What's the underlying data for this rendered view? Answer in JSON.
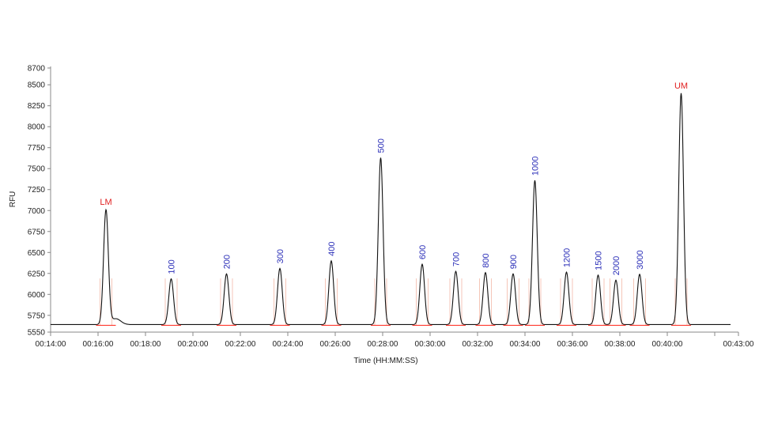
{
  "chart_data": {
    "type": "line",
    "xlabel": "Time (HH:MM:SS)",
    "ylabel": "RFU",
    "xlim": [
      "00:14:00",
      "00:43:00"
    ],
    "ylim": [
      5550,
      8700
    ],
    "x_ticks": [
      "00:14:00",
      "00:16:00",
      "00:18:00",
      "00:20:00",
      "00:22:00",
      "00:24:00",
      "00:26:00",
      "00:28:00",
      "00:30:00",
      "00:32:00",
      "00:34:00",
      "00:36:00",
      "00:38:00",
      "00:40:00",
      "00:43:00"
    ],
    "y_ticks": [
      "5550",
      "5750",
      "6000",
      "6250",
      "6500",
      "6750",
      "7000",
      "7250",
      "7500",
      "7750",
      "8000",
      "8250",
      "8500",
      "8700"
    ],
    "baseline": 5640,
    "grid": false,
    "peaks": [
      {
        "label": "LM",
        "time": "00:16:20",
        "rfu": 7010,
        "label_color": "#e02020"
      },
      {
        "label": "100",
        "time": "00:19:05",
        "rfu": 6185,
        "label_color": "#2b2fb8"
      },
      {
        "label": "200",
        "time": "00:21:25",
        "rfu": 6245,
        "label_color": "#2b2fb8"
      },
      {
        "label": "300",
        "time": "00:23:40",
        "rfu": 6310,
        "label_color": "#2b2fb8"
      },
      {
        "label": "400",
        "time": "00:25:50",
        "rfu": 6400,
        "label_color": "#2b2fb8"
      },
      {
        "label": "500",
        "time": "00:27:55",
        "rfu": 7630,
        "label_color": "#2b2fb8"
      },
      {
        "label": "600",
        "time": "00:29:40",
        "rfu": 6360,
        "label_color": "#2b2fb8"
      },
      {
        "label": "700",
        "time": "00:31:05",
        "rfu": 6275,
        "label_color": "#2b2fb8"
      },
      {
        "label": "800",
        "time": "00:32:20",
        "rfu": 6260,
        "label_color": "#2b2fb8"
      },
      {
        "label": "900",
        "time": "00:33:30",
        "rfu": 6245,
        "label_color": "#2b2fb8"
      },
      {
        "label": "1000",
        "time": "00:34:25",
        "rfu": 7360,
        "label_color": "#2b2fb8"
      },
      {
        "label": "1200",
        "time": "00:35:45",
        "rfu": 6265,
        "label_color": "#2b2fb8"
      },
      {
        "label": "1500",
        "time": "00:37:05",
        "rfu": 6230,
        "label_color": "#2b2fb8"
      },
      {
        "label": "2000",
        "time": "00:37:50",
        "rfu": 6170,
        "label_color": "#2b2fb8"
      },
      {
        "label": "3000",
        "time": "00:38:50",
        "rfu": 6240,
        "label_color": "#2b2fb8"
      },
      {
        "label": "UM",
        "time": "00:40:35",
        "rfu": 8400,
        "label_color": "#e02020"
      }
    ],
    "trace_color": "#111111",
    "baseline_marker_color": "#ff3b30",
    "region_marker_color": "#f5c6b8"
  }
}
